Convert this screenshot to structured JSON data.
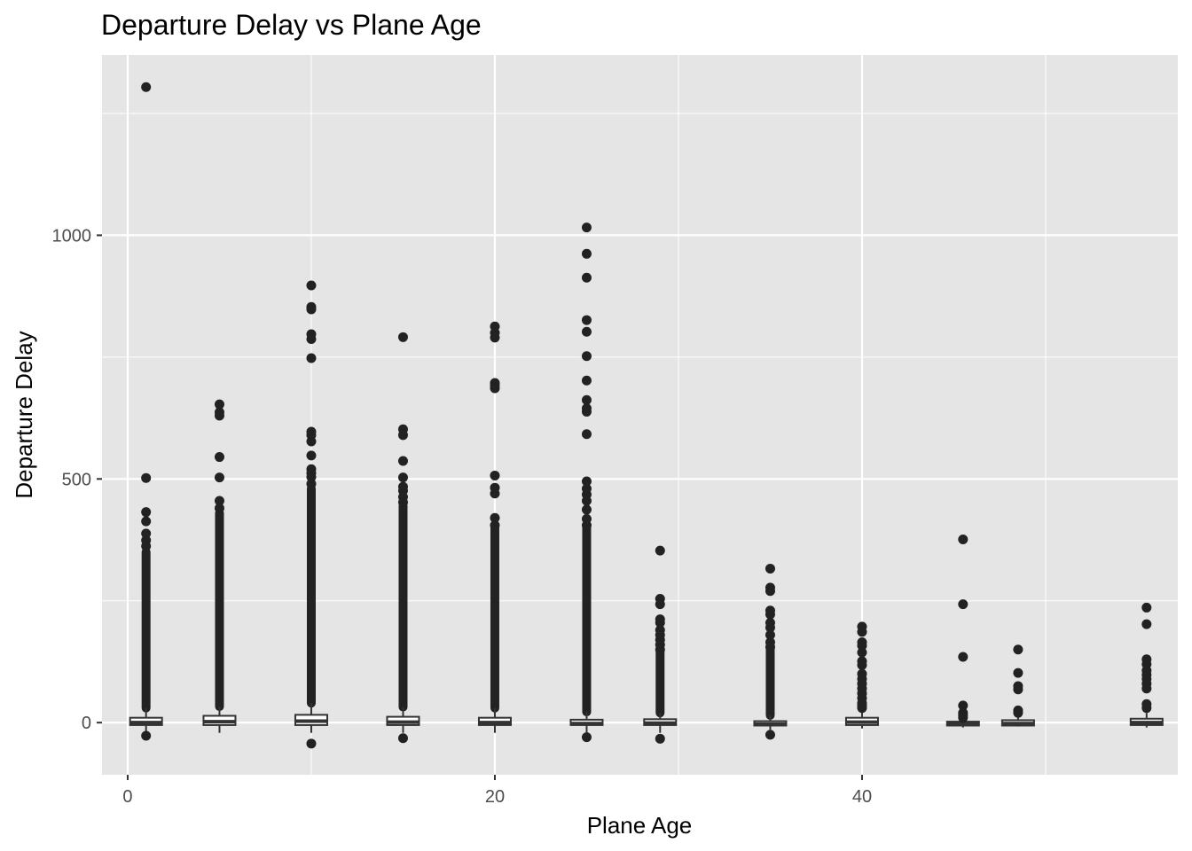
{
  "chart_data": {
    "type": "boxplot",
    "title": "Departure Delay vs Plane Age",
    "xlabel": "Plane Age",
    "ylabel": "Departure Delay",
    "xlim": [
      -1.4,
      57.2
    ],
    "ylim": [
      -107,
      1370
    ],
    "x_ticks": [
      0,
      20,
      40
    ],
    "x_minor": [
      10,
      30,
      50
    ],
    "y_ticks": [
      0,
      500,
      1000
    ],
    "y_minor": [
      250,
      750,
      1250
    ],
    "x_tick_labels": [
      "0",
      "20",
      "40"
    ],
    "y_tick_labels": [
      "0",
      "500",
      "1000"
    ],
    "grid": true,
    "legend": "none",
    "colors": {
      "panel": "#e5e5e5",
      "grid": "#ffffff",
      "box_fill": "#ffffff",
      "box_line": "#333333",
      "outlier": "#222222",
      "tick_text": "#4d4d4d"
    },
    "boxes": [
      {
        "x": 1,
        "q1": -5,
        "median": 0,
        "q3": 10,
        "whisker_low": -21,
        "whisker_high": 30,
        "outliers": [
          1304,
          502,
          432,
          413,
          388,
          374,
          362,
          -27
        ],
        "dense_outliers": [
          30,
          350
        ]
      },
      {
        "x": 5,
        "q1": -5,
        "median": 2,
        "q3": 14,
        "whisker_low": -21,
        "whisker_high": 33,
        "outliers": [
          653,
          637,
          630,
          545,
          503,
          455,
          440
        ],
        "dense_outliers": [
          33,
          430
        ]
      },
      {
        "x": 10,
        "q1": -5,
        "median": 3,
        "q3": 16,
        "whisker_low": -21,
        "whisker_high": 40,
        "outliers": [
          897,
          853,
          848,
          797,
          787,
          748,
          597,
          590,
          577,
          548,
          520,
          512,
          504,
          490,
          -43
        ],
        "dense_outliers": [
          40,
          480
        ]
      },
      {
        "x": 15,
        "q1": -5,
        "median": 1,
        "q3": 12,
        "whisker_low": -21,
        "whisker_high": 32,
        "outliers": [
          791,
          602,
          590,
          537,
          503,
          484,
          476,
          463,
          452,
          -32
        ],
        "dense_outliers": [
          32,
          445
        ]
      },
      {
        "x": 20,
        "q1": -5,
        "median": 0,
        "q3": 10,
        "whisker_low": -21,
        "whisker_high": 30,
        "outliers": [
          813,
          800,
          790,
          697,
          692,
          686,
          507,
          482,
          470,
          420,
          405
        ],
        "dense_outliers": [
          30,
          400
        ]
      },
      {
        "x": 25,
        "q1": -5,
        "median": -2,
        "q3": 6,
        "whisker_low": -21,
        "whisker_high": 22,
        "outliers": [
          1016,
          962,
          913,
          826,
          802,
          752,
          702,
          662,
          645,
          638,
          592,
          495,
          480,
          468,
          455,
          437,
          418,
          405,
          -30
        ],
        "dense_outliers": [
          22,
          400
        ]
      },
      {
        "x": 29,
        "q1": -5,
        "median": -1,
        "q3": 7,
        "whisker_low": -21,
        "whisker_high": 20,
        "outliers": [
          353,
          254,
          243,
          212,
          205,
          190,
          180,
          170,
          160,
          150,
          -33
        ],
        "dense_outliers": [
          20,
          145
        ]
      },
      {
        "x": 35,
        "q1": -6,
        "median": -3,
        "q3": 3,
        "whisker_low": -15,
        "whisker_high": 15,
        "outliers": [
          316,
          277,
          270,
          230,
          222,
          205,
          195,
          180,
          165,
          155,
          -25
        ],
        "dense_outliers": [
          15,
          150
        ]
      },
      {
        "x": 40,
        "q1": -5,
        "median": 1,
        "q3": 10,
        "whisker_low": -12,
        "whisker_high": 25,
        "outliers": [
          197,
          186,
          165,
          158,
          144,
          126,
          118,
          100,
          90,
          80,
          70,
          60,
          50,
          40,
          35,
          30
        ]
      },
      {
        "x": 45.5,
        "q1": -6,
        "median": -3,
        "q3": 2,
        "whisker_low": -10,
        "whisker_high": 5,
        "outliers": [
          376,
          243,
          135,
          35,
          20,
          15,
          10
        ]
      },
      {
        "x": 48.5,
        "q1": -6,
        "median": -2,
        "q3": 5,
        "whisker_low": -8,
        "whisker_high": 12,
        "outliers": [
          150,
          102,
          75,
          68,
          25,
          20
        ]
      },
      {
        "x": 55.5,
        "q1": -5,
        "median": 0,
        "q3": 8,
        "whisker_low": -10,
        "whisker_high": 20,
        "outliers": [
          236,
          202,
          130,
          120,
          107,
          98,
          90,
          80,
          70,
          38,
          30
        ]
      }
    ]
  }
}
